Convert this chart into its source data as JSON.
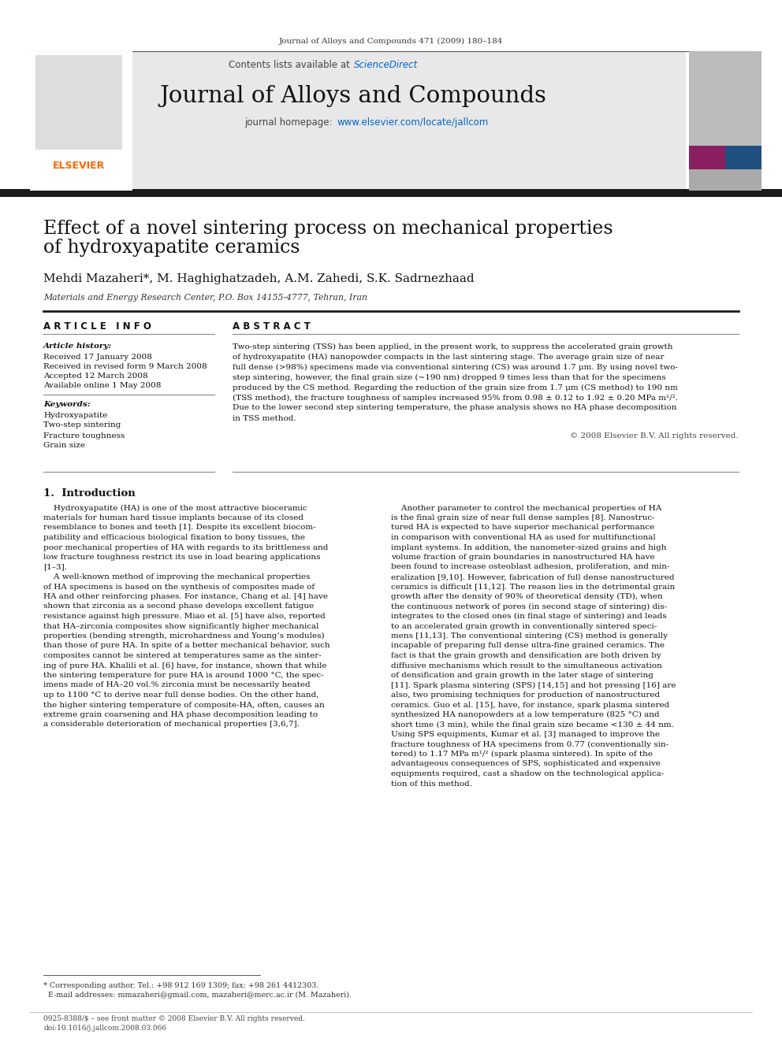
{
  "page_title": "Journal of Alloys and Compounds 471 (2009) 180–184",
  "journal_name": "Journal of Alloys and Compounds",
  "journal_homepage": "journal homepage: www.elsevier.com/locate/jallcom",
  "contents_line": "Contents lists available at ScienceDirect",
  "sciencedirect_color": "#0066cc",
  "homepage_color": "#0066cc",
  "article_title_line1": "Effect of a novel sintering process on mechanical properties",
  "article_title_line2": "of hydroxyapatite ceramics",
  "authors": "Mehdi Mazaheri*, M. Haghighatzadeh, A.M. Zahedi, S.K. Sadrnezhaad",
  "affiliation": "Materials and Energy Research Center, P.O. Box 14155-4777, Tehran, Iran",
  "article_info_header": "A R T I C L E   I N F O",
  "abstract_header": "A B S T R A C T",
  "article_history_label": "Article history:",
  "received": "Received 17 January 2008",
  "received_revised": "Received in revised form 9 March 2008",
  "accepted": "Accepted 12 March 2008",
  "available": "Available online 1 May 2008",
  "keywords_label": "Keywords:",
  "keywords": [
    "Hydroxyapatite",
    "Two-step sintering",
    "Fracture toughness",
    "Grain size"
  ],
  "copyright": "© 2008 Elsevier B.V. All rights reserved.",
  "section1_title": "1.  Introduction",
  "footer_left": "0925-8388/$ – see front matter © 2008 Elsevier B.V. All rights reserved.",
  "footer_doi": "doi:10.1016/j.jallcom.2008.03.066",
  "bg_color": "#ffffff",
  "text_color": "#000000",
  "header_bg": "#e8e8e8",
  "dark_bar_color": "#1a1a1a",
  "elsevier_orange": "#FF6600",
  "elsevier_blue_dark": "#003366"
}
